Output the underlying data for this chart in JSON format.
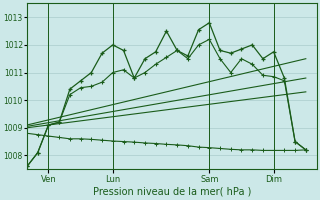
{
  "bg_color": "#cce8e8",
  "grid_color": "#aacccc",
  "line_color": "#1a5c1a",
  "xlabel": "Pression niveau de la mer( hPa )",
  "ylim": [
    1007.5,
    1013.5
  ],
  "yticks": [
    1008,
    1009,
    1010,
    1011,
    1012,
    1013
  ],
  "xtick_labels": [
    "Ven",
    "Lun",
    "Sam",
    "Dim"
  ],
  "xtick_positions": [
    2,
    8,
    17,
    23
  ],
  "xlim": [
    0,
    27
  ],
  "vline_positions": [
    2,
    8,
    17,
    23
  ],
  "series1_x": [
    0,
    1,
    2,
    3,
    4,
    5,
    6,
    7,
    8,
    9,
    10,
    11,
    12,
    13,
    14,
    15,
    16,
    17,
    18,
    19,
    20,
    21,
    22,
    23,
    24,
    25,
    26
  ],
  "series1_y": [
    1007.6,
    1008.1,
    1009.1,
    1009.2,
    1010.4,
    1010.7,
    1011.0,
    1011.7,
    1012.0,
    1011.8,
    1010.8,
    1011.5,
    1011.75,
    1012.5,
    1011.8,
    1011.6,
    1012.55,
    1012.8,
    1011.8,
    1011.7,
    1011.85,
    1012.0,
    1011.5,
    1011.75,
    1010.8,
    1008.5,
    1008.2
  ],
  "series2_x": [
    0,
    1,
    2,
    3,
    4,
    5,
    6,
    7,
    8,
    9,
    10,
    11,
    12,
    13,
    14,
    15,
    16,
    17,
    18,
    19,
    20,
    21,
    22,
    23,
    24,
    25,
    26
  ],
  "series2_y": [
    1007.6,
    1008.1,
    1009.1,
    1009.2,
    1010.2,
    1010.45,
    1010.5,
    1010.65,
    1011.0,
    1011.1,
    1010.8,
    1011.0,
    1011.3,
    1011.55,
    1011.8,
    1011.5,
    1012.0,
    1012.2,
    1011.5,
    1011.0,
    1011.5,
    1011.3,
    1010.9,
    1010.85,
    1010.7,
    1008.5,
    1008.2
  ],
  "trend1_x": [
    0,
    26
  ],
  "trend1_y": [
    1009.1,
    1011.5
  ],
  "trend2_x": [
    0,
    26
  ],
  "trend2_y": [
    1009.05,
    1010.8
  ],
  "trend3_x": [
    0,
    26
  ],
  "trend3_y": [
    1009.0,
    1010.3
  ],
  "series5_x": [
    0,
    1,
    2,
    3,
    4,
    5,
    6,
    7,
    8,
    9,
    10,
    11,
    12,
    13,
    14,
    15,
    16,
    17,
    18,
    19,
    20,
    21,
    22,
    23,
    24,
    25,
    26
  ],
  "series5_y": [
    1008.8,
    1008.75,
    1008.7,
    1008.65,
    1008.6,
    1008.6,
    1008.58,
    1008.55,
    1008.52,
    1008.5,
    1008.48,
    1008.45,
    1008.43,
    1008.4,
    1008.38,
    1008.35,
    1008.3,
    1008.28,
    1008.25,
    1008.22,
    1008.2,
    1008.2,
    1008.18,
    1008.18,
    1008.18,
    1008.18,
    1008.2
  ]
}
